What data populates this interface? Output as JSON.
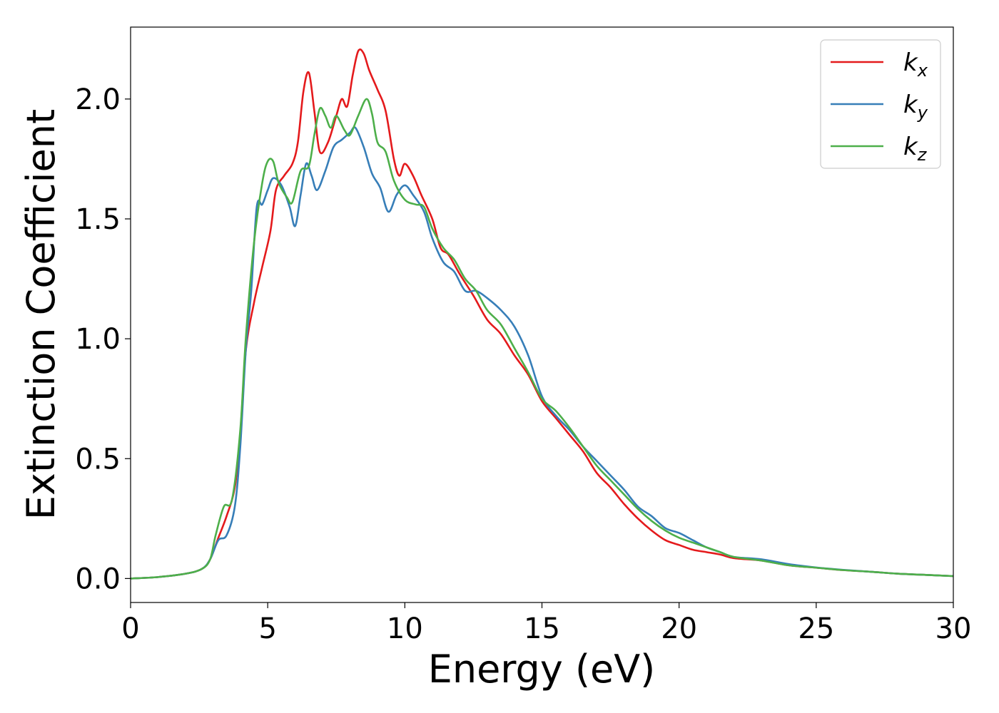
{
  "chart_data": {
    "type": "line",
    "title": "",
    "xlabel": "Energy (eV)",
    "ylabel": "Extinction Coefficient",
    "xlim": [
      0,
      30
    ],
    "ylim": [
      -0.1,
      2.3
    ],
    "x_ticks": [
      "0",
      "5",
      "10",
      "15",
      "20",
      "25",
      "30"
    ],
    "y_ticks": [
      "0.0",
      "0.5",
      "1.0",
      "1.5",
      "2.0"
    ],
    "grid": false,
    "legend_position": "top-right",
    "series": [
      {
        "name": "k_x",
        "legend_base": "k",
        "legend_sub": "x",
        "color": "#e41a1c",
        "points": [
          [
            0,
            0
          ],
          [
            1,
            0.006
          ],
          [
            2,
            0.02
          ],
          [
            2.6,
            0.04
          ],
          [
            2.9,
            0.08
          ],
          [
            3.2,
            0.17
          ],
          [
            3.5,
            0.26
          ],
          [
            3.8,
            0.38
          ],
          [
            4.0,
            0.6
          ],
          [
            4.2,
            0.95
          ],
          [
            4.5,
            1.15
          ],
          [
            4.8,
            1.3
          ],
          [
            5.1,
            1.45
          ],
          [
            5.3,
            1.62
          ],
          [
            5.6,
            1.68
          ],
          [
            5.9,
            1.73
          ],
          [
            6.1,
            1.82
          ],
          [
            6.3,
            2.03
          ],
          [
            6.5,
            2.11
          ],
          [
            6.7,
            1.95
          ],
          [
            6.9,
            1.78
          ],
          [
            7.2,
            1.82
          ],
          [
            7.5,
            1.93
          ],
          [
            7.7,
            2.0
          ],
          [
            7.9,
            1.97
          ],
          [
            8.1,
            2.1
          ],
          [
            8.3,
            2.2
          ],
          [
            8.5,
            2.19
          ],
          [
            8.7,
            2.12
          ],
          [
            9.0,
            2.04
          ],
          [
            9.3,
            1.95
          ],
          [
            9.6,
            1.75
          ],
          [
            9.8,
            1.68
          ],
          [
            10.0,
            1.73
          ],
          [
            10.3,
            1.68
          ],
          [
            10.6,
            1.6
          ],
          [
            11.0,
            1.5
          ],
          [
            11.3,
            1.38
          ],
          [
            11.6,
            1.35
          ],
          [
            12.0,
            1.27
          ],
          [
            12.5,
            1.18
          ],
          [
            13.0,
            1.08
          ],
          [
            13.5,
            1.02
          ],
          [
            14.0,
            0.93
          ],
          [
            14.5,
            0.85
          ],
          [
            15.0,
            0.74
          ],
          [
            15.5,
            0.67
          ],
          [
            16.0,
            0.6
          ],
          [
            16.5,
            0.53
          ],
          [
            17.0,
            0.44
          ],
          [
            17.5,
            0.38
          ],
          [
            18.0,
            0.31
          ],
          [
            18.5,
            0.25
          ],
          [
            19.0,
            0.2
          ],
          [
            19.5,
            0.16
          ],
          [
            20.0,
            0.14
          ],
          [
            20.5,
            0.12
          ],
          [
            21.0,
            0.11
          ],
          [
            21.5,
            0.1
          ],
          [
            22.0,
            0.085
          ],
          [
            23.0,
            0.075
          ],
          [
            24.0,
            0.055
          ],
          [
            25.0,
            0.045
          ],
          [
            26.0,
            0.035
          ],
          [
            27.0,
            0.028
          ],
          [
            28.0,
            0.02
          ],
          [
            29.0,
            0.015
          ],
          [
            30.0,
            0.01
          ]
        ]
      },
      {
        "name": "k_y",
        "legend_base": "k",
        "legend_sub": "y",
        "color": "#377eb8",
        "points": [
          [
            0,
            0
          ],
          [
            1,
            0.006
          ],
          [
            2,
            0.02
          ],
          [
            2.6,
            0.04
          ],
          [
            2.9,
            0.08
          ],
          [
            3.2,
            0.16
          ],
          [
            3.5,
            0.18
          ],
          [
            3.8,
            0.3
          ],
          [
            4.0,
            0.55
          ],
          [
            4.2,
            0.95
          ],
          [
            4.4,
            1.2
          ],
          [
            4.6,
            1.55
          ],
          [
            4.8,
            1.56
          ],
          [
            5.0,
            1.62
          ],
          [
            5.2,
            1.67
          ],
          [
            5.5,
            1.64
          ],
          [
            5.8,
            1.55
          ],
          [
            6.0,
            1.47
          ],
          [
            6.2,
            1.6
          ],
          [
            6.4,
            1.73
          ],
          [
            6.6,
            1.68
          ],
          [
            6.8,
            1.62
          ],
          [
            7.1,
            1.7
          ],
          [
            7.4,
            1.8
          ],
          [
            7.7,
            1.83
          ],
          [
            8.0,
            1.86
          ],
          [
            8.2,
            1.88
          ],
          [
            8.5,
            1.8
          ],
          [
            8.8,
            1.69
          ],
          [
            9.1,
            1.63
          ],
          [
            9.4,
            1.53
          ],
          [
            9.7,
            1.6
          ],
          [
            10.0,
            1.64
          ],
          [
            10.3,
            1.6
          ],
          [
            10.7,
            1.53
          ],
          [
            11.0,
            1.42
          ],
          [
            11.4,
            1.32
          ],
          [
            11.8,
            1.28
          ],
          [
            12.2,
            1.2
          ],
          [
            12.6,
            1.2
          ],
          [
            13.0,
            1.17
          ],
          [
            13.5,
            1.12
          ],
          [
            14.0,
            1.05
          ],
          [
            14.5,
            0.93
          ],
          [
            15.0,
            0.76
          ],
          [
            15.5,
            0.68
          ],
          [
            16.0,
            0.62
          ],
          [
            16.5,
            0.55
          ],
          [
            17.0,
            0.49
          ],
          [
            17.5,
            0.43
          ],
          [
            18.0,
            0.37
          ],
          [
            18.5,
            0.3
          ],
          [
            19.0,
            0.26
          ],
          [
            19.5,
            0.21
          ],
          [
            20.0,
            0.19
          ],
          [
            20.5,
            0.16
          ],
          [
            21.0,
            0.13
          ],
          [
            21.5,
            0.11
          ],
          [
            22.0,
            0.09
          ],
          [
            23.0,
            0.08
          ],
          [
            24.0,
            0.06
          ],
          [
            25.0,
            0.046
          ],
          [
            26.0,
            0.036
          ],
          [
            27.0,
            0.028
          ],
          [
            28.0,
            0.02
          ],
          [
            29.0,
            0.015
          ],
          [
            30.0,
            0.01
          ]
        ]
      },
      {
        "name": "k_z",
        "legend_base": "k",
        "legend_sub": "z",
        "color": "#4daf4a",
        "points": [
          [
            0,
            0
          ],
          [
            1,
            0.006
          ],
          [
            2,
            0.02
          ],
          [
            2.6,
            0.04
          ],
          [
            2.9,
            0.08
          ],
          [
            3.1,
            0.18
          ],
          [
            3.4,
            0.3
          ],
          [
            3.7,
            0.33
          ],
          [
            4.0,
            0.62
          ],
          [
            4.2,
            1.0
          ],
          [
            4.5,
            1.4
          ],
          [
            4.8,
            1.65
          ],
          [
            5.0,
            1.74
          ],
          [
            5.2,
            1.74
          ],
          [
            5.4,
            1.65
          ],
          [
            5.7,
            1.59
          ],
          [
            5.9,
            1.57
          ],
          [
            6.2,
            1.7
          ],
          [
            6.5,
            1.72
          ],
          [
            6.7,
            1.85
          ],
          [
            6.9,
            1.96
          ],
          [
            7.1,
            1.93
          ],
          [
            7.3,
            1.88
          ],
          [
            7.5,
            1.93
          ],
          [
            7.8,
            1.87
          ],
          [
            8.0,
            1.85
          ],
          [
            8.3,
            1.93
          ],
          [
            8.6,
            2.0
          ],
          [
            8.8,
            1.94
          ],
          [
            9.0,
            1.82
          ],
          [
            9.3,
            1.78
          ],
          [
            9.6,
            1.66
          ],
          [
            10.0,
            1.58
          ],
          [
            10.4,
            1.56
          ],
          [
            10.7,
            1.55
          ],
          [
            11.0,
            1.46
          ],
          [
            11.4,
            1.38
          ],
          [
            11.8,
            1.33
          ],
          [
            12.2,
            1.25
          ],
          [
            12.6,
            1.2
          ],
          [
            13.0,
            1.12
          ],
          [
            13.5,
            1.06
          ],
          [
            14.0,
            0.96
          ],
          [
            14.5,
            0.86
          ],
          [
            15.0,
            0.75
          ],
          [
            15.5,
            0.7
          ],
          [
            16.0,
            0.63
          ],
          [
            16.5,
            0.55
          ],
          [
            17.0,
            0.47
          ],
          [
            17.5,
            0.41
          ],
          [
            18.0,
            0.35
          ],
          [
            18.5,
            0.29
          ],
          [
            19.0,
            0.24
          ],
          [
            19.5,
            0.2
          ],
          [
            20.0,
            0.17
          ],
          [
            20.5,
            0.15
          ],
          [
            21.0,
            0.13
          ],
          [
            21.5,
            0.11
          ],
          [
            22.0,
            0.09
          ],
          [
            23.0,
            0.075
          ],
          [
            24.0,
            0.055
          ],
          [
            25.0,
            0.045
          ],
          [
            26.0,
            0.035
          ],
          [
            27.0,
            0.028
          ],
          [
            28.0,
            0.02
          ],
          [
            29.0,
            0.015
          ],
          [
            30.0,
            0.01
          ]
        ]
      }
    ]
  }
}
